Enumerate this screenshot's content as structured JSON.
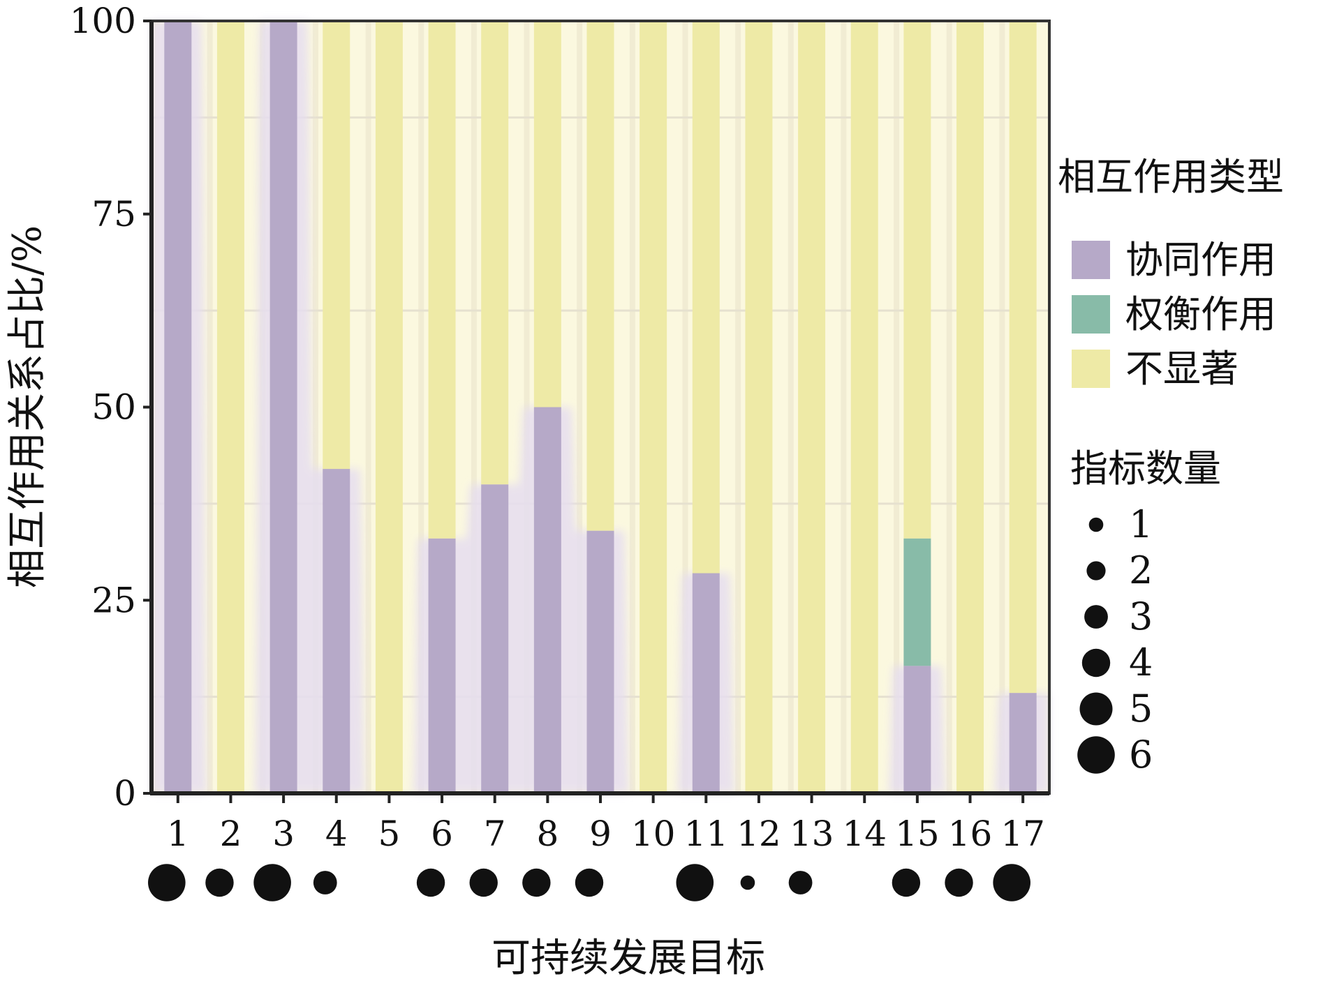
{
  "chart_data": {
    "type": "bar",
    "stacked": true,
    "xlabel": "可持续发展目标",
    "ylabel": "相互作用关系占比/%",
    "ylim": [
      0,
      100
    ],
    "yticks": [
      0,
      25,
      50,
      75,
      100
    ],
    "categories": [
      "1",
      "2",
      "3",
      "4",
      "5",
      "6",
      "7",
      "8",
      "9",
      "10",
      "11",
      "12",
      "13",
      "14",
      "15",
      "16",
      "17"
    ],
    "series": [
      {
        "name": "协同作用",
        "color": "#b6a9c8",
        "values": [
          100,
          0,
          100,
          42,
          0,
          33,
          40,
          50,
          34,
          0,
          28.5,
          0,
          0,
          0,
          16.5,
          0,
          13
        ]
      },
      {
        "name": "权衡作用",
        "color": "#88bba8",
        "values": [
          0,
          0,
          0,
          0,
          0,
          0,
          0,
          0,
          0,
          0,
          0,
          0,
          0,
          0,
          16.5,
          0,
          0
        ]
      },
      {
        "name": "不显著",
        "color": "#eeeaa6",
        "values": [
          0,
          100,
          0,
          58,
          100,
          67,
          60,
          50,
          66,
          100,
          71.5,
          100,
          100,
          100,
          67,
          100,
          87
        ]
      }
    ],
    "indicator_count": [
      6,
      4,
      6,
      3,
      0,
      4,
      4,
      4,
      4,
      0,
      6,
      1,
      3,
      0,
      4,
      4,
      6
    ],
    "legend": {
      "type_title": "相互作用类型",
      "count_title": "指标数量",
      "count_items": [
        "1",
        "2",
        "3",
        "4",
        "5",
        "6"
      ],
      "placement": "right"
    },
    "grid": true
  }
}
